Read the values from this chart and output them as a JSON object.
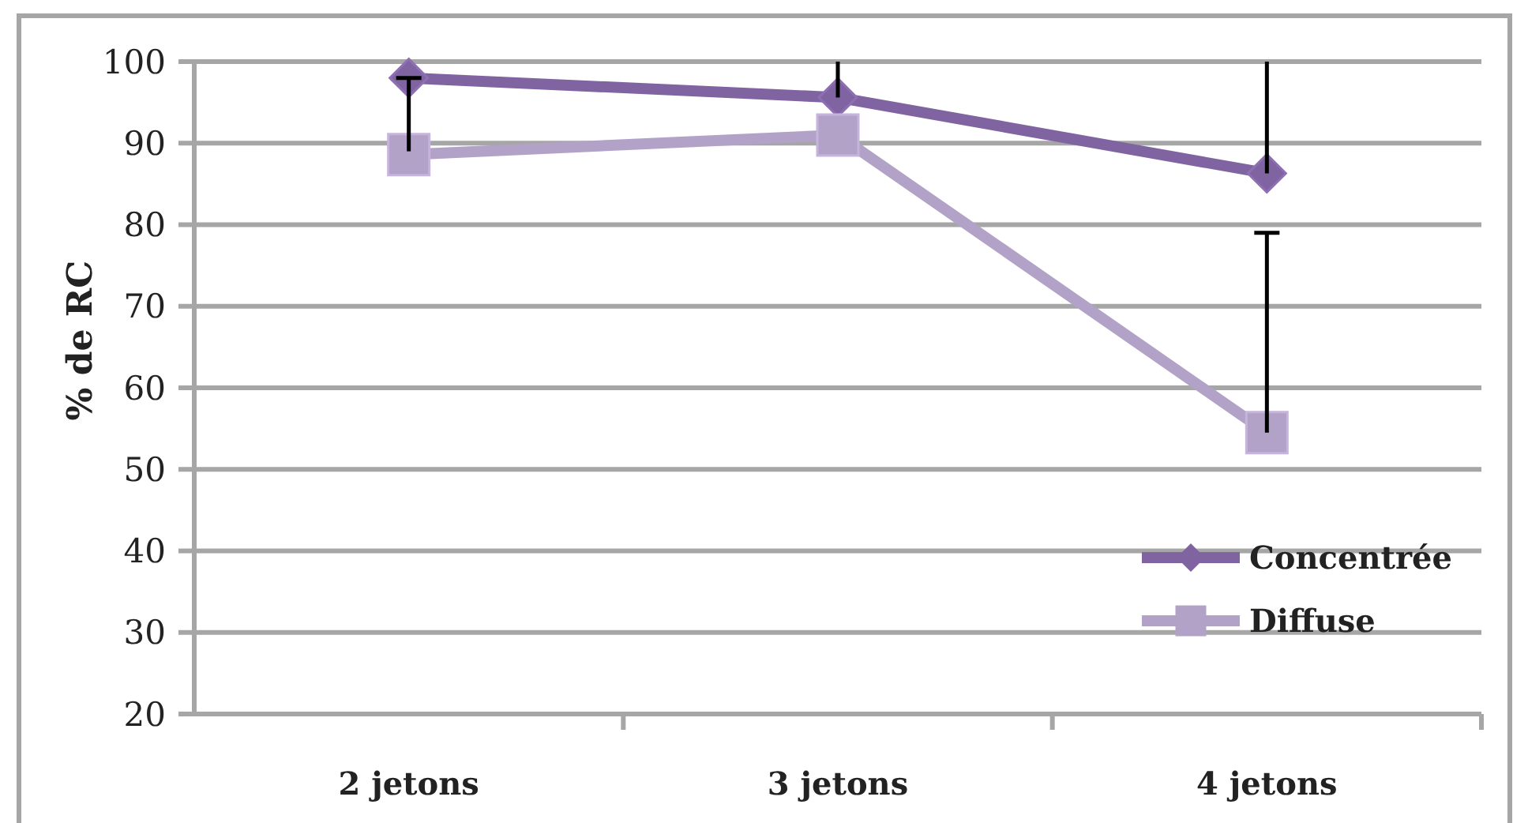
{
  "chart_data": {
    "type": "line",
    "ylabel": "% de RC",
    "categories": [
      "2 jetons",
      "3 jetons",
      "4 jetons"
    ],
    "series": [
      {
        "name": "Concentrée",
        "color": "#8064a2",
        "marker": "diamond",
        "values": [
          98,
          95.6,
          86.3
        ],
        "errors": [
          [
            89,
            98
          ],
          [
            95.6,
            100
          ],
          [
            86.3,
            100
          ]
        ]
      },
      {
        "name": "Diffuse",
        "color": "#b3a2c7",
        "marker": "square",
        "values": [
          88.6,
          91,
          54.5
        ],
        "errors": [
          null,
          null,
          [
            54.5,
            79
          ]
        ]
      }
    ],
    "ylim": [
      20,
      100
    ],
    "yticks": [
      20,
      30,
      40,
      50,
      60,
      70,
      80,
      90,
      100
    ],
    "grid": "y",
    "legend": "bottom right"
  }
}
